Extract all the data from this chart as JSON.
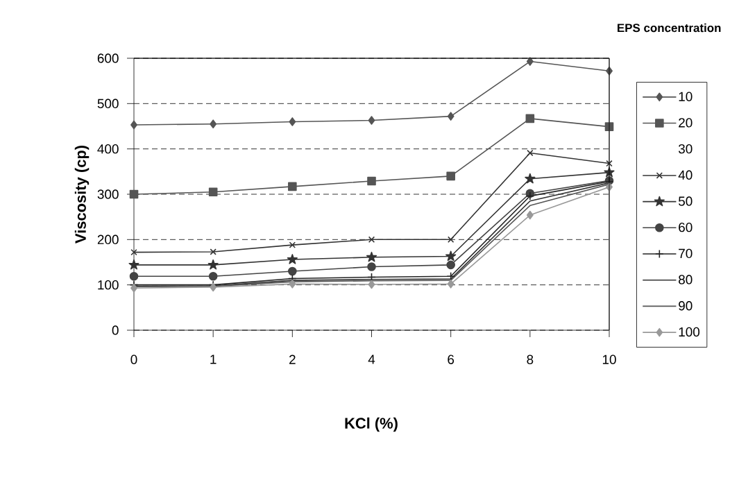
{
  "chart_data": {
    "type": "line",
    "xlabel": "KCl (%)",
    "ylabel": "Viscosity (cp)",
    "legend_title": "EPS concentration",
    "categories": [
      "0",
      "1",
      "2",
      "4",
      "6",
      "8",
      "10"
    ],
    "ylim": [
      0,
      600
    ],
    "yticks": [
      0,
      100,
      200,
      300,
      400,
      500,
      600
    ],
    "grid": "y",
    "legend": "right",
    "line_style": "solid",
    "series": [
      {
        "name": "10",
        "color": "#555555",
        "marker": "diamond",
        "values": [
          453,
          455,
          460,
          463,
          472,
          593,
          572
        ]
      },
      {
        "name": "20",
        "color": "#555555",
        "marker": "square",
        "values": [
          300,
          305,
          317,
          329,
          340,
          467,
          449
        ]
      },
      {
        "name": "30",
        "values": [
          null,
          null,
          null,
          null,
          null,
          null,
          null
        ]
      },
      {
        "name": "40",
        "color": "#333333",
        "marker": "cross",
        "values": [
          172,
          173,
          188,
          200,
          200,
          391,
          368
        ]
      },
      {
        "name": "50",
        "color": "#333333",
        "marker": "star",
        "values": [
          144,
          144,
          156,
          161,
          163,
          334,
          348
        ]
      },
      {
        "name": "60",
        "color": "#444444",
        "marker": "circle",
        "values": [
          119,
          119,
          130,
          140,
          144,
          302,
          330
        ]
      },
      {
        "name": "70",
        "color": "#222222",
        "marker": "plus",
        "values": [
          100,
          100,
          114,
          117,
          119,
          296,
          328
        ]
      },
      {
        "name": "80",
        "color": "#333333",
        "marker": "none",
        "values": [
          97,
          98,
          110,
          112,
          113,
          285,
          325
        ]
      },
      {
        "name": "90",
        "color": "#555555",
        "marker": "none",
        "values": [
          96,
          97,
          107,
          109,
          110,
          275,
          322
        ]
      },
      {
        "name": "100",
        "color": "#999999",
        "marker": "diamond",
        "values": [
          93,
          95,
          102,
          101,
          102,
          254,
          316
        ]
      }
    ]
  }
}
